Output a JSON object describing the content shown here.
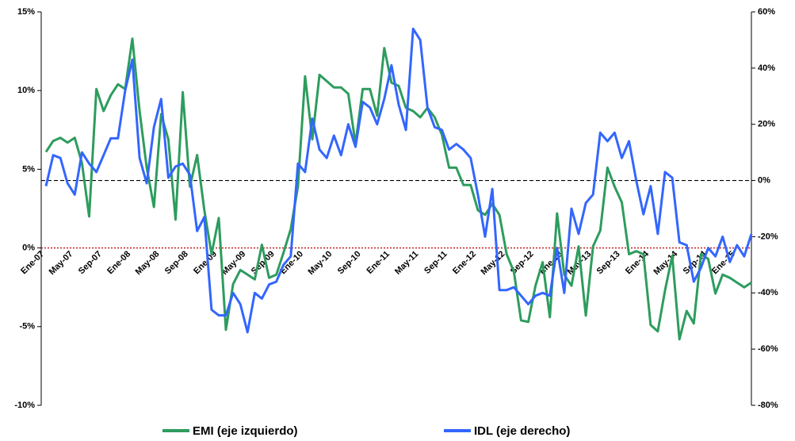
{
  "chart_data": {
    "type": "line",
    "categories": [
      "Ene-07",
      null,
      null,
      null,
      "May-07",
      null,
      null,
      null,
      "Sep-07",
      null,
      null,
      null,
      "Ene-08",
      null,
      null,
      null,
      "May-08",
      null,
      null,
      null,
      "Sep-08",
      null,
      null,
      null,
      "Ene-09",
      null,
      null,
      null,
      "May-09",
      null,
      null,
      null,
      "Sep-09",
      null,
      null,
      null,
      "Ene-10",
      null,
      null,
      null,
      "May-10",
      null,
      null,
      null,
      "Sep-10",
      null,
      null,
      null,
      "Ene-11",
      null,
      null,
      null,
      "May-11",
      null,
      null,
      null,
      "Sep-11",
      null,
      null,
      null,
      "Ene-12",
      null,
      null,
      null,
      "May-12",
      null,
      null,
      null,
      "Sep-12",
      null,
      null,
      null,
      "Ene-13",
      null,
      null,
      null,
      "May-13",
      null,
      null,
      null,
      "Sep-13",
      null,
      null,
      null,
      "Ene-14",
      null,
      null,
      null,
      "May-14",
      null,
      null,
      null,
      "Sep-14",
      null,
      null,
      null,
      "Ene-15",
      null,
      null
    ],
    "series": [
      {
        "name": "EMI (eje izquierdo)",
        "color": "#2e9c5e",
        "axis": "y",
        "values": [
          6.1,
          6.8,
          7.0,
          6.7,
          7.0,
          5.4,
          2.0,
          10.1,
          8.7,
          9.7,
          10.4,
          10.1,
          13.3,
          8.7,
          5.1,
          2.6,
          8.5,
          6.9,
          1.8,
          9.9,
          3.9,
          5.9,
          2.4,
          -0.4,
          1.9,
          -5.2,
          -2.3,
          -1.4,
          -1.7,
          -2.0,
          0.2,
          -1.9,
          -1.7,
          -0.3,
          1.2,
          3.9,
          10.9,
          6.9,
          11.0,
          10.6,
          10.2,
          10.2,
          9.8,
          6.6,
          10.1,
          10.1,
          8.4,
          12.7,
          10.5,
          10.3,
          8.9,
          8.7,
          8.3,
          8.9,
          8.3,
          7.2,
          5.1,
          5.1,
          4.0,
          4.0,
          2.4,
          2.1,
          2.8,
          2.1,
          -0.4,
          -1.5,
          -4.6,
          -4.7,
          -2.4,
          -0.9,
          -4.4,
          2.2,
          -1.7,
          -2.4,
          0.1,
          -4.3,
          0.1,
          1.1,
          5.1,
          3.9,
          2.9,
          -0.4,
          -0.2,
          -0.4,
          -4.9,
          -5.3,
          -2.7,
          -0.5,
          -5.8,
          -4.0,
          -4.8,
          -0.4,
          -0.7,
          -2.9,
          -1.7,
          -1.9,
          -2.2,
          -2.5,
          -2.2
        ]
      },
      {
        "name": "IDL (eje derecho)",
        "color": "#3366ff",
        "axis": "y2",
        "values": [
          -2,
          9,
          8,
          -1,
          -5,
          10,
          6,
          3,
          9,
          15,
          15,
          32,
          43,
          8,
          -1,
          19,
          29,
          1,
          5,
          6,
          2,
          -18,
          -13,
          -46,
          -48,
          -48,
          -40,
          -44,
          -54,
          -40,
          -42,
          -37,
          -36,
          -30,
          -27,
          6,
          3,
          22,
          11,
          8,
          16,
          9,
          20,
          12,
          28,
          26,
          20,
          29,
          41,
          27,
          18,
          54,
          50,
          26,
          19,
          18,
          11,
          13,
          11,
          8,
          -5,
          -20,
          -3,
          -39,
          -39,
          -38,
          -41,
          -44,
          -41,
          -40,
          -41,
          -24,
          -40,
          -10,
          -19,
          -8,
          -5,
          17,
          14,
          17,
          8,
          14,
          0,
          -12,
          -2,
          -19,
          3,
          1,
          -22,
          -23,
          -36,
          -31,
          -24,
          -27,
          -20,
          -29,
          -23,
          -27,
          -19
        ]
      }
    ],
    "ylim": [
      -10,
      15
    ],
    "yticks": [
      {
        "value": -10,
        "label": "-10%"
      },
      {
        "value": -5,
        "label": "-5%"
      },
      {
        "value": 0,
        "label": "0%"
      },
      {
        "value": 5,
        "label": "5%"
      },
      {
        "value": 10,
        "label": "10%"
      },
      {
        "value": 15,
        "label": "15%"
      }
    ],
    "y2lim": [
      -80,
      60
    ],
    "y2ticks": [
      {
        "value": -80,
        "label": "-80%"
      },
      {
        "value": -60,
        "label": "-60%"
      },
      {
        "value": -40,
        "label": "-40%"
      },
      {
        "value": -20,
        "label": "-20%"
      },
      {
        "value": 0,
        "label": "0%"
      },
      {
        "value": 20,
        "label": "20%"
      },
      {
        "value": 40,
        "label": "40%"
      },
      {
        "value": 60,
        "label": "60%"
      }
    ],
    "reference_lines": [
      {
        "axis": "y",
        "value": 0,
        "color": "#c00000",
        "dash": "dotted"
      },
      {
        "axis": "y2",
        "value": 0,
        "color": "#000000",
        "dash": "dashed"
      }
    ],
    "legend": "bottom"
  }
}
